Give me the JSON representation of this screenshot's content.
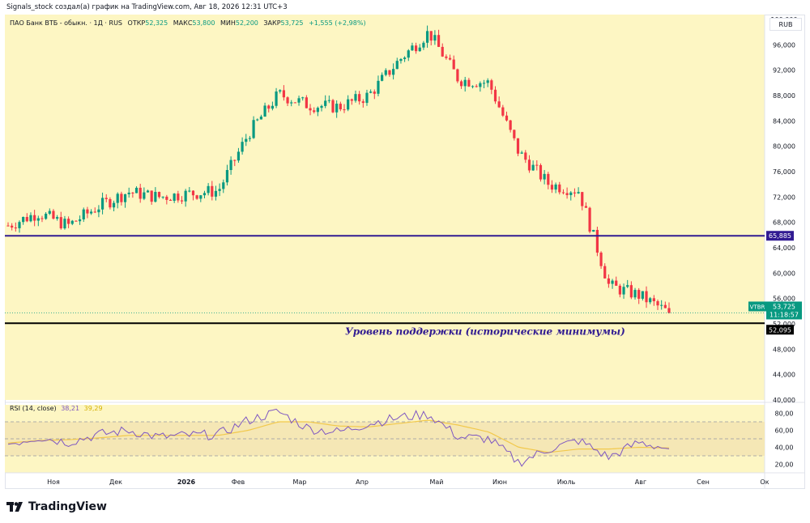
{
  "header": {
    "text": "Signals_stock создал(а) график на TradingView.com, Авг 18, 2026 12:31 UTC+3"
  },
  "legend": {
    "symbol": "ПАО Банк ВТБ - обыкн. · 1Д · RUS",
    "open_label": "ОТКР",
    "open": "52,325",
    "high_label": "МАКС",
    "high": "53,800",
    "low_label": "МИН",
    "low": "52,200",
    "close_label": "ЗАКР",
    "close": "53,725",
    "change": "+1,555 (+2,98%)"
  },
  "currency": "RUB",
  "price_badges": {
    "symbol_tag": "VTBR",
    "last_price": "53,725",
    "countdown": "11:18:57",
    "resistance": "65,885",
    "support": "52,095"
  },
  "annotation": "Уровень поддержки (исторические минимумы)",
  "rsi_legend": {
    "label": "RSI (14, close)",
    "rsi": "38,21",
    "ma": "39,29"
  },
  "footer": {
    "brand": "TradingView"
  },
  "colors": {
    "background": "#fdf6c3",
    "up": "#089981",
    "down": "#f23645",
    "resistance_line": "#311b92",
    "support_line": "#000000",
    "rsi_line": "#7e57c2",
    "rsi_ma": "#f2c94c",
    "rsi_band": "#f5e7b5"
  },
  "chart_data": [
    {
      "type": "candlestick",
      "title": "ПАО Банк ВТБ - обыкн. · 1Д · RUS",
      "ylim": [
        40000,
        100000
      ],
      "y_ticks": [
        "100,000",
        "96,000",
        "92,000",
        "88,000",
        "84,000",
        "80,000",
        "76,000",
        "72,000",
        "68,000",
        "64,000",
        "60,000",
        "56,000",
        "52,000",
        "48,000",
        "44,000",
        "40,000"
      ],
      "x_ticks": [
        "Ноя",
        "Дек",
        "2026",
        "Фев",
        "Мар",
        "Апр",
        "Май",
        "Июн",
        "Июль",
        "Авг",
        "Сен",
        "Ок"
      ],
      "horizontal_levels": [
        65885,
        52095
      ],
      "last_price": 53725,
      "series": [
        {
          "name": "close",
          "x": [
            "2025-10-13",
            "2025-10-27",
            "2025-11-10",
            "2025-11-24",
            "2025-12-08",
            "2025-12-22",
            "2026-01-05",
            "2026-01-19",
            "2026-02-02",
            "2026-02-16",
            "2026-03-02",
            "2026-03-16",
            "2026-03-30",
            "2026-04-13",
            "2026-04-27",
            "2026-05-11",
            "2026-05-25",
            "2026-06-08",
            "2026-06-22",
            "2026-07-06",
            "2026-07-20",
            "2026-08-03",
            "2026-08-17"
          ],
          "values": [
            67500,
            69500,
            67500,
            70500,
            72800,
            72000,
            72500,
            73000,
            82000,
            88200,
            86500,
            86200,
            88000,
            93500,
            98000,
            90500,
            90000,
            79000,
            74000,
            73000,
            58000,
            56500,
            53725
          ]
        }
      ]
    },
    {
      "type": "line",
      "title": "RSI (14, close)",
      "ylim": [
        10,
        90
      ],
      "y_ticks": [
        "80,00",
        "60,00",
        "40,00",
        "20,00"
      ],
      "bands": [
        30,
        70
      ],
      "series": [
        {
          "name": "RSI",
          "values": [
            44,
            52,
            46,
            55,
            60,
            52,
            54,
            55,
            72,
            82,
            62,
            58,
            68,
            75,
            79,
            52,
            50,
            22,
            38,
            48,
            28,
            46,
            38.21
          ]
        },
        {
          "name": "MA",
          "values": [
            45,
            48,
            49,
            51,
            54,
            54,
            54,
            54,
            60,
            70,
            70,
            65,
            64,
            68,
            72,
            66,
            58,
            40,
            34,
            38,
            38,
            40,
            39.29
          ]
        }
      ]
    }
  ]
}
